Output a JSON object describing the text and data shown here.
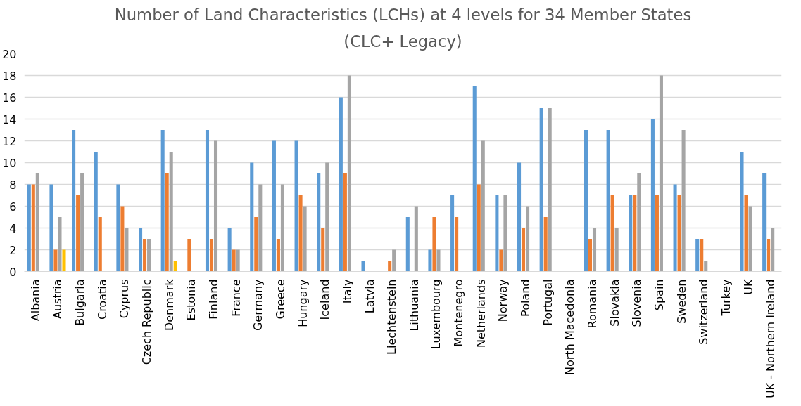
{
  "chart_data": {
    "type": "bar",
    "title": "Number of Land Characteristics (LCHs) at 4 levels for 34 Member States",
    "subtitle": "(CLC+ Legacy)",
    "categories": [
      "Albania",
      "Austria",
      "Bulgaria",
      "Croatia",
      "Cyprus",
      "Czech Republic",
      "Denmark",
      "Estonia",
      "Finland",
      "France",
      "Germany",
      "Greece",
      "Hungary",
      "Iceland",
      "Italy",
      "Latvia",
      "Liechtenstein",
      "Lithuania",
      "Luxembourg",
      "Montenegro",
      "Netherlands",
      "Norway",
      "Poland",
      "Portugal",
      "North Macedonia",
      "Romania",
      "Slovakia",
      "Slovenia",
      "Spain",
      "Sweden",
      "Switzerland",
      "Turkey",
      "UK",
      "UK - Northern Ireland"
    ],
    "series": [
      {
        "color": "#5b9bd5",
        "values": [
          8,
          8,
          13,
          11,
          8,
          4,
          13,
          null,
          13,
          4,
          10,
          12,
          12,
          9,
          16,
          1,
          null,
          5,
          2,
          7,
          17,
          7,
          10,
          15,
          null,
          13,
          13,
          7,
          14,
          8,
          3,
          null,
          11,
          9
        ]
      },
      {
        "color": "#ed7d31",
        "values": [
          8,
          2,
          7,
          5,
          6,
          3,
          9,
          3,
          3,
          2,
          5,
          3,
          7,
          4,
          9,
          null,
          1,
          null,
          5,
          5,
          8,
          2,
          4,
          5,
          null,
          3,
          7,
          7,
          7,
          7,
          3,
          null,
          7,
          3
        ]
      },
      {
        "color": "#a5a5a5",
        "values": [
          9,
          5,
          9,
          null,
          4,
          3,
          11,
          null,
          12,
          2,
          8,
          8,
          6,
          10,
          18,
          null,
          2,
          6,
          2,
          null,
          12,
          7,
          6,
          15,
          null,
          4,
          4,
          9,
          18,
          13,
          1,
          null,
          6,
          4
        ]
      },
      {
        "color": "#ffc000",
        "values": [
          null,
          2,
          null,
          null,
          null,
          null,
          1,
          null,
          null,
          null,
          null,
          null,
          null,
          null,
          null,
          null,
          null,
          null,
          null,
          null,
          null,
          null,
          null,
          null,
          null,
          null,
          null,
          null,
          null,
          null,
          null,
          null,
          null,
          null
        ]
      }
    ],
    "ylim": [
      0,
      20
    ],
    "yticks": [
      0,
      2,
      4,
      6,
      8,
      10,
      12,
      14,
      16,
      18,
      20
    ],
    "grid": "y"
  }
}
